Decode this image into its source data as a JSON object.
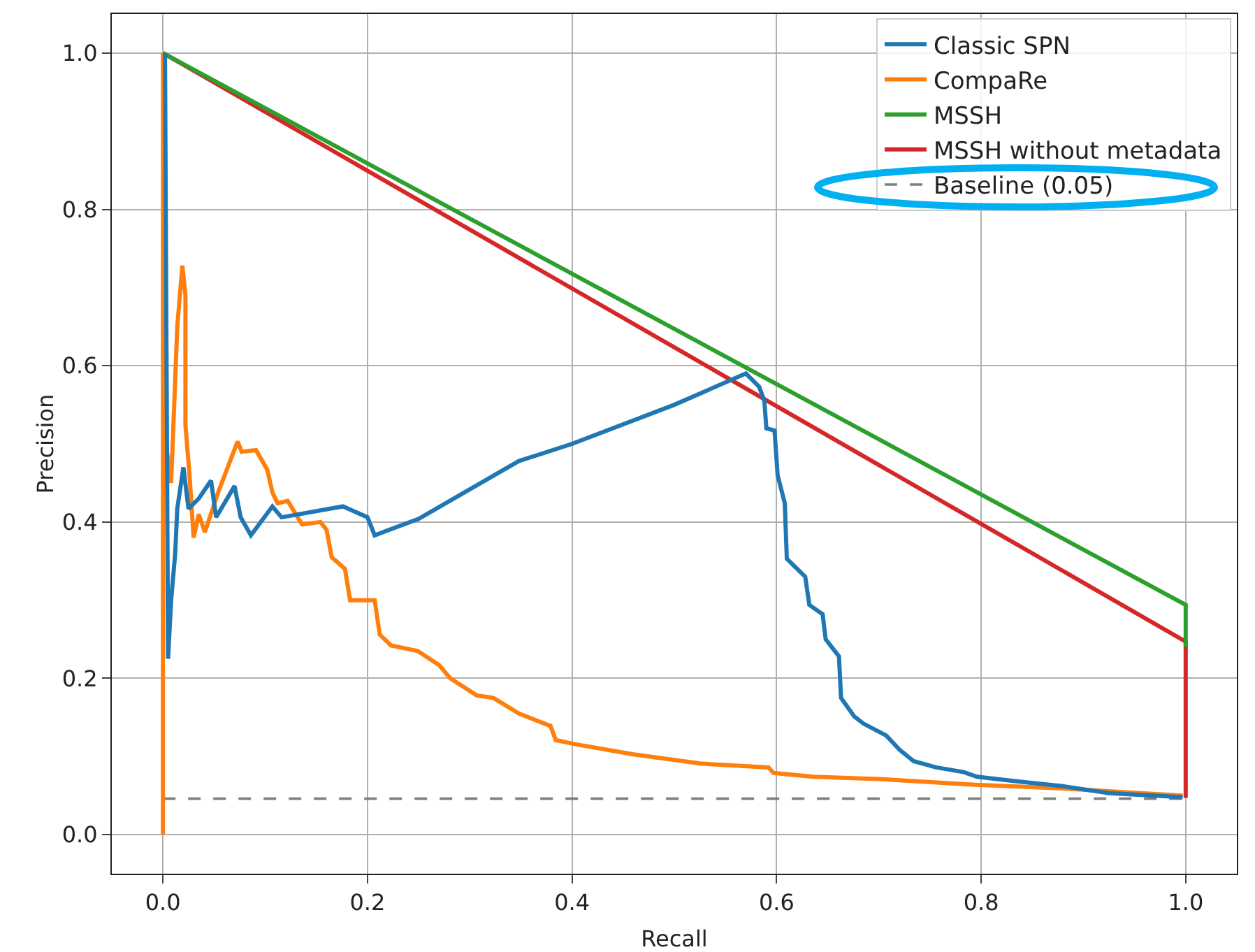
{
  "chart_data": {
    "type": "line",
    "xlabel": "Recall",
    "ylabel": "Precision",
    "xlim": [
      -0.05,
      1.05
    ],
    "ylim": [
      -0.05,
      1.05
    ],
    "xticks": [
      {
        "value": 0,
        "label": "0.0"
      },
      0.2,
      0.4,
      0.6,
      0.8,
      {
        "value": 1,
        "label": "1.0"
      }
    ],
    "yticks": [
      {
        "value": 0,
        "label": "0.0"
      },
      0.2,
      0.4,
      0.6,
      0.8,
      {
        "value": 1,
        "label": "1.0"
      }
    ],
    "grid": true,
    "legend": "top right",
    "line_style": "solid",
    "series": [
      {
        "name": "Classic SPN",
        "color": "#1f77b4",
        "x": [
          0.002,
          0.005,
          0.008,
          0.012,
          0.014,
          0.02,
          0.025,
          0.035,
          0.047,
          0.052,
          0.07,
          0.076,
          0.086,
          0.107,
          0.116,
          0.176,
          0.2,
          0.207,
          0.25,
          0.348,
          0.4,
          0.5,
          0.57,
          0.583,
          0.588,
          0.59,
          0.598,
          0.601,
          0.608,
          0.61,
          0.628,
          0.632,
          0.645,
          0.648,
          0.661,
          0.663,
          0.676,
          0.685,
          0.707,
          0.72,
          0.734,
          0.756,
          0.783,
          0.796,
          0.836,
          0.88,
          0.925,
          0.997
        ],
        "values": [
          1.0,
          0.225,
          0.3,
          0.36,
          0.417,
          0.47,
          0.417,
          0.43,
          0.453,
          0.406,
          0.446,
          0.406,
          0.383,
          0.42,
          0.406,
          0.42,
          0.406,
          0.383,
          0.404,
          0.478,
          0.5,
          0.55,
          0.59,
          0.573,
          0.555,
          0.52,
          0.517,
          0.46,
          0.424,
          0.353,
          0.33,
          0.294,
          0.282,
          0.25,
          0.228,
          0.175,
          0.151,
          0.142,
          0.127,
          0.109,
          0.094,
          0.086,
          0.08,
          0.074,
          0.068,
          0.062,
          0.053,
          0.048
        ]
      },
      {
        "name": "CompaRe",
        "color": "#ff7f0e",
        "x": [
          0.0,
          0.0,
          0.003,
          0.008,
          0.014,
          0.019,
          0.022,
          0.022,
          0.026,
          0.03,
          0.035,
          0.041,
          0.054,
          0.073,
          0.077,
          0.091,
          0.102,
          0.107,
          0.112,
          0.122,
          0.136,
          0.154,
          0.16,
          0.165,
          0.178,
          0.183,
          0.207,
          0.212,
          0.223,
          0.249,
          0.27,
          0.281,
          0.307,
          0.323,
          0.348,
          0.379,
          0.384,
          0.402,
          0.459,
          0.525,
          0.592,
          0.597,
          0.636,
          0.703,
          0.791,
          0.88,
          0.997
        ],
        "values": [
          0.0,
          1.0,
          0.5,
          0.45,
          0.65,
          0.728,
          0.69,
          0.524,
          0.46,
          0.38,
          0.41,
          0.387,
          0.438,
          0.503,
          0.49,
          0.492,
          0.467,
          0.438,
          0.424,
          0.427,
          0.397,
          0.4,
          0.39,
          0.355,
          0.34,
          0.3,
          0.3,
          0.256,
          0.242,
          0.235,
          0.217,
          0.2,
          0.178,
          0.175,
          0.155,
          0.139,
          0.121,
          0.116,
          0.103,
          0.091,
          0.086,
          0.079,
          0.074,
          0.071,
          0.064,
          0.059,
          0.05
        ]
      },
      {
        "name": "MSSH",
        "color": "#2ca02c",
        "x": [
          0,
          1,
          1
        ],
        "values": [
          1.0,
          0.294,
          0.24
        ]
      },
      {
        "name": "MSSH without metadata",
        "color": "#d62728",
        "x": [
          0,
          1,
          1
        ],
        "values": [
          1.0,
          0.247,
          0.047
        ]
      },
      {
        "name": "Baseline (0.05)",
        "color": "#808080",
        "line_style": "dashed",
        "x": [
          0,
          1
        ],
        "values": [
          0.046,
          0.046
        ]
      }
    ]
  }
}
